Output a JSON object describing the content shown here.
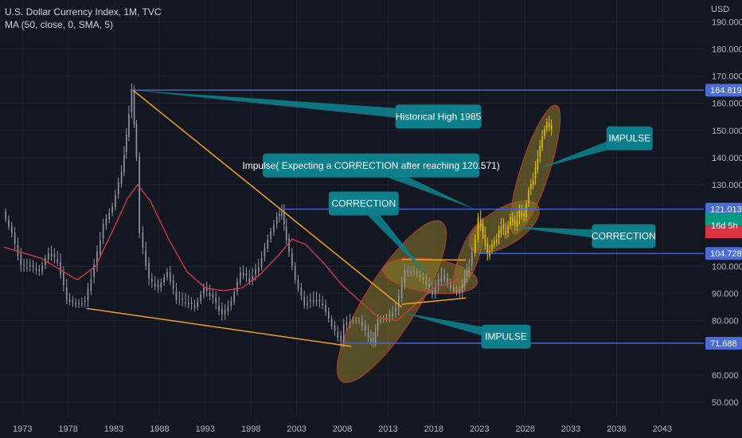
{
  "header": {
    "title": "U.S. Dollar Currency Index, 1M, TVC",
    "indicator": "MA (50, close, 0, SMA, 5)"
  },
  "colors": {
    "background": "#131722",
    "grid": "#1f2330",
    "candle": "#9598a1",
    "candle_highlight": "#e5c100",
    "moving_average": "#d93b45",
    "trendline": "#f0a020",
    "horizontal_level": "#4a6bd8",
    "callout": "#0d7f8c",
    "price_tag": "#4a6bd8",
    "current_price": "#089981",
    "current_price_bottom": "#f23645",
    "ellipse_fill": "#8a7a2a"
  },
  "chart_data": {
    "type": "line",
    "series": [
      {
        "x": [
          1971,
          1972,
          1973,
          1974,
          1975,
          1976,
          1977,
          1978,
          1979,
          1980,
          1981,
          1982,
          1983,
          1984,
          1984.5,
          1985.1,
          1985.6,
          1986,
          1987,
          1988,
          1989,
          1990,
          1991,
          1992,
          1993,
          1994,
          1995,
          1996,
          1997,
          1998,
          1999,
          2000,
          2001,
          2001.5,
          2002,
          2003,
          2004,
          2005,
          2006,
          2007,
          2008,
          2008.3,
          2009,
          2010,
          2011,
          2011.5,
          2012,
          2013,
          2014,
          2015,
          2016,
          2017,
          2018,
          2019,
          2020,
          2021,
          2021.5,
          2022,
          2022.7,
          2023,
          2023.5,
          2024,
          2024.5,
          2025,
          2025.5,
          2026,
          2026.5,
          2027,
          2027.5,
          2028,
          2028.5,
          2029,
          2029.5,
          2030,
          2030.5,
          2031
        ],
        "values": [
          120,
          112,
          100,
          100,
          98,
          105,
          102,
          88,
          86,
          87,
          100,
          115,
          122,
          135,
          148,
          164.8,
          140,
          112,
          95,
          92,
          98,
          88,
          87,
          85,
          92,
          88,
          82,
          87,
          98,
          95,
          100,
          110,
          118,
          120,
          110,
          95,
          86,
          88,
          86,
          78,
          72,
          78,
          80,
          80,
          74,
          72,
          80,
          81,
          84,
          98,
          98,
          95,
          90,
          97,
          92,
          90,
          96,
          100,
          110,
          118,
          112,
          104,
          108,
          110,
          115,
          112,
          118,
          115,
          120,
          118,
          128,
          132,
          140,
          148,
          153,
          150
        ]
      },
      {
        "x": [
          1971,
          1975,
          1979,
          1981,
          1983,
          1984.5,
          1985.6,
          1987,
          1989,
          1991,
          1993,
          1995,
          1997,
          1999,
          2001,
          2002.5,
          2004,
          2006,
          2008,
          2010,
          2012,
          2014,
          2016,
          2018,
          2020,
          2021
        ],
        "values": [
          107,
          103,
          95,
          100,
          114,
          125,
          130,
          124,
          110,
          98,
          92,
          91,
          92,
          97,
          104,
          110,
          108,
          101,
          93,
          87,
          81,
          80,
          86,
          92,
          94,
          96
        ]
      }
    ],
    "y_ticks": [
      "190.000",
      "180.000",
      "170.000",
      "160.000",
      "150.000",
      "140.000",
      "130.000",
      "100.000",
      "90.000",
      "80.000",
      "60.000",
      "50.000"
    ],
    "y_tick_values": [
      190,
      180,
      170,
      160,
      150,
      140,
      130,
      100,
      90,
      80,
      60,
      50
    ],
    "x_ticks": [
      "1973",
      "1978",
      "1983",
      "1988",
      "1993",
      "1998",
      "2003",
      "2008",
      "2013",
      "2018",
      "2023",
      "2028",
      "2033",
      "2038",
      "2043"
    ],
    "x_tick_values": [
      1973,
      1978,
      1983,
      1988,
      1993,
      1998,
      2003,
      2008,
      2013,
      2018,
      2023,
      2028,
      2033,
      2038,
      2043
    ],
    "ylim": [
      45,
      198
    ],
    "xlim": [
      1970.5,
      2047.5
    ],
    "y_unit": "USD",
    "price_levels": [
      {
        "label": "164.819",
        "value": 164.819,
        "x_start": 1984.8
      },
      {
        "label": "121.013",
        "value": 121.013,
        "x_start": 2001.5
      },
      {
        "label": "104.728",
        "value": 104.728,
        "x_start": 2022.8
      },
      {
        "label": "71.688",
        "value": 71.688,
        "x_start": 2008.1
      }
    ],
    "current_price": {
      "label": "16d 5h",
      "value": 115
    },
    "trendlines": [
      {
        "x1": 1985.1,
        "y1": 164.8,
        "x2": 2014.5,
        "y2": 85
      },
      {
        "x1": 1980,
        "y1": 84.5,
        "x2": 2009,
        "y2": 70.5
      },
      {
        "x1": 2014.5,
        "y1": 102.5,
        "x2": 2021.5,
        "y2": 102.3
      },
      {
        "x1": 2014.5,
        "y1": 86,
        "x2": 2021.5,
        "y2": 88.3
      }
    ],
    "ellipses": [
      {
        "cx": 2013.4,
        "cy": 87,
        "rx": 33,
        "ry": 118,
        "angle": 32
      },
      {
        "cx": 2017.6,
        "cy": 96.5,
        "rx": 60,
        "ry": 21,
        "angle": 8
      },
      {
        "cx": 2021.8,
        "cy": 103,
        "rx": 12,
        "ry": 46,
        "angle": 20
      },
      {
        "cx": 2025.7,
        "cy": 114.5,
        "rx": 50,
        "ry": 23,
        "angle": -32
      },
      {
        "cx": 2029.1,
        "cy": 135.5,
        "rx": 18,
        "ry": 85,
        "angle": 18
      }
    ],
    "annotations": [
      {
        "text": "Historical High 1985",
        "box_x": 2013.8,
        "box_y": 159.5,
        "box_w": 108,
        "tip_x": 1985.1,
        "tip_y": 164.8
      },
      {
        "text": "Impulse( Expecting a CORRECTION after reaching 120.571)",
        "box_x": 1999.3,
        "box_y": 141.5,
        "box_w": 272,
        "tip_x": 2022.5,
        "tip_y": 121
      },
      {
        "text": "CORRECTION",
        "box_x": 2006.5,
        "box_y": 127.5,
        "box_w": 88,
        "tip_x": 2017.5,
        "tip_y": 96
      },
      {
        "text": "IMPULSE",
        "box_x": 2036.9,
        "box_y": 151.5,
        "box_w": 58,
        "tip_x": 2029.5,
        "tip_y": 136
      },
      {
        "text": "CORRECTION",
        "box_x": 2035.3,
        "box_y": 115.5,
        "box_w": 80,
        "tip_x": 2026.5,
        "tip_y": 114.5
      },
      {
        "text": "IMPULSE",
        "box_x": 2023.2,
        "box_y": 78.5,
        "box_w": 62,
        "tip_x": 2014.5,
        "tip_y": 83
      }
    ]
  }
}
